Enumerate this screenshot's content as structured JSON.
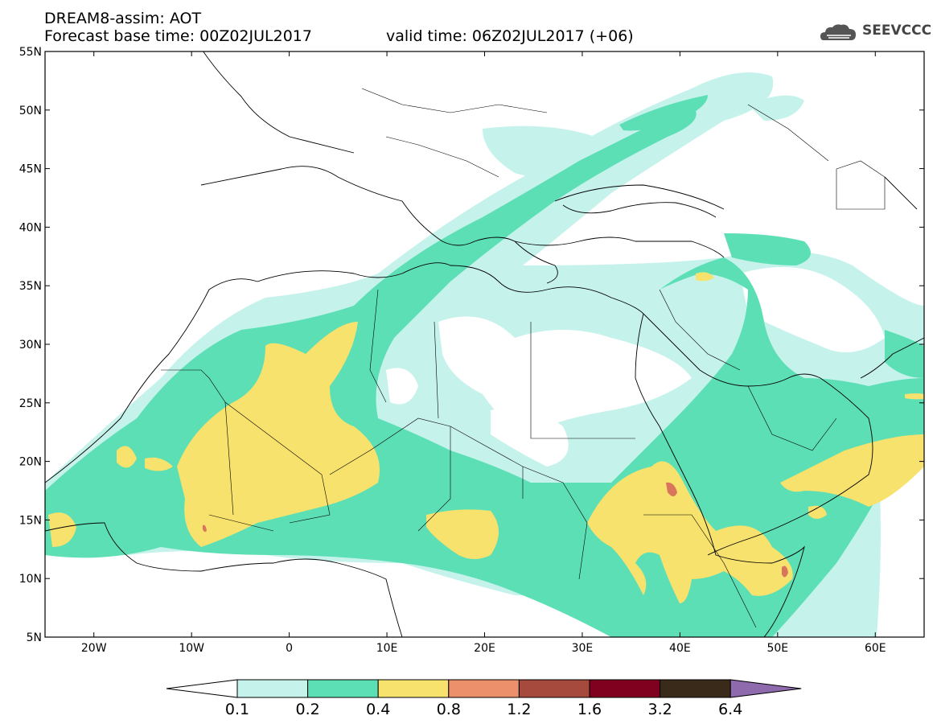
{
  "header": {
    "title": "DREAM8-assim: AOT",
    "base_time": "Forecast base time: 00Z02JUL2017",
    "valid_time": "valid time: 06Z02JUL2017 (+06)",
    "logo_text": "SEEVCCC"
  },
  "map": {
    "lon_range": [
      -25,
      65
    ],
    "lat_range": [
      5,
      55
    ],
    "lat_ticks": [
      "55N",
      "50N",
      "45N",
      "40N",
      "35N",
      "30N",
      "25N",
      "20N",
      "15N",
      "10N",
      "5N"
    ],
    "lon_ticks": [
      "20W",
      "10W",
      "0",
      "10E",
      "20E",
      "30E",
      "40E",
      "50E",
      "60E"
    ]
  },
  "colorbar": {
    "labels": [
      "0.1",
      "0.2",
      "0.4",
      "0.8",
      "1.2",
      "1.6",
      "3.2",
      "6.4"
    ],
    "colors": [
      "#ffffff",
      "#c6f2ec",
      "#5ddfb6",
      "#f6e26c",
      "#eb906b",
      "#a64a3e",
      "#800020",
      "#3a2a1a",
      "#8f6bae"
    ]
  }
}
